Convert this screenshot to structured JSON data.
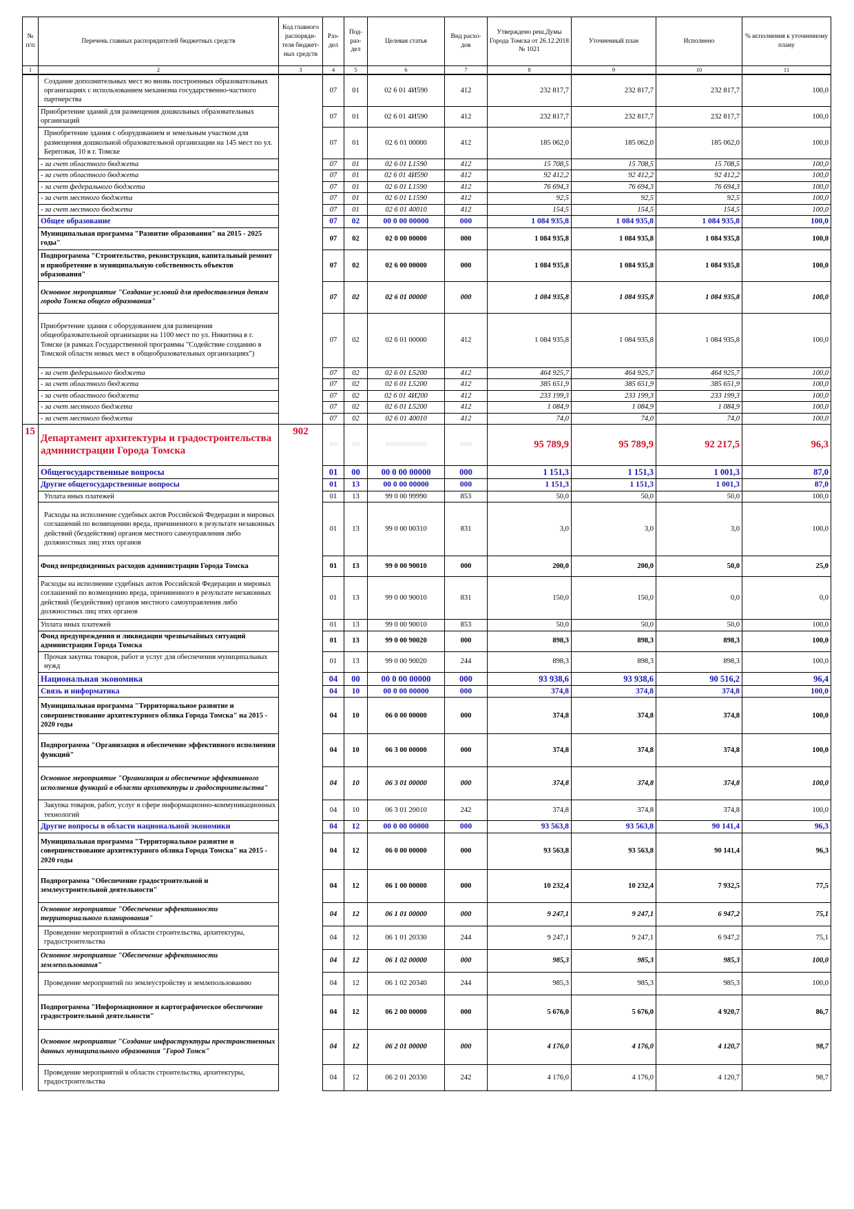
{
  "header": {
    "c1": "№ п/п",
    "c2": "Перечень главных распорядителей бюджетных средств",
    "c3": "Код главного распоряди-теля бюджет-ных средств",
    "c4": "Раз-дел",
    "c5": "Под-раз-дел",
    "c6": "Целевая статья",
    "c7": "Вид расхо-дов",
    "c8": "Утверждено реш.Думы Города Томска от 26.12.2018 № 1021",
    "c9": "Уточненный план",
    "c10": "Исполнено",
    "c11": "% исполнения к уточненному плану"
  },
  "col_numbers": [
    "1",
    "2",
    "3",
    "4",
    "5",
    "6",
    "7",
    "8",
    "9",
    "10",
    "11"
  ],
  "rows": [
    {
      "name": "Создание дополнительных мест во вновь построенных образовательных организациях с использованием механизма государственно-частного партнерства",
      "rz": "07",
      "pr": "01",
      "cs": "02 6 01 4И590",
      "vr": "412",
      "p1": "232 817,7",
      "p2": "232 817,7",
      "p3": "232 817,7",
      "pct": "100,0"
    },
    {
      "name": "Приобретение зданий для размещения дошкольных образовательных организаций",
      "rz": "07",
      "pr": "01",
      "cs": "02 6 01 4И590",
      "vr": "412",
      "p1": "232 817,7",
      "p2": "232 817,7",
      "p3": "232 817,7",
      "pct": "100,0"
    },
    {
      "name": "Приобретение здания с оборудованием и земельным участком для размещения дошкольной образовательной организации на 145 мест по ул. Береговая, 10 в г. Томске",
      "rz": "07",
      "pr": "01",
      "cs": "02 6 01 00000",
      "vr": "412",
      "p1": "185 062,0",
      "p2": "185 062,0",
      "p3": "185 062,0",
      "pct": "100,0"
    },
    {
      "name": "- за счет областного бюджета",
      "rz": "07",
      "pr": "01",
      "cs": "02 6 01 L1590",
      "vr": "412",
      "p1": "15 708,5",
      "p2": "15 708,5",
      "p3": "15 708,5",
      "pct": "100,0"
    },
    {
      "name": "- за счет областного бюджета",
      "rz": "07",
      "pr": "01",
      "cs": "02 6 01 4И590",
      "vr": "412",
      "p1": "92 412,2",
      "p2": "92 412,2",
      "p3": "92 412,2",
      "pct": "100,0"
    },
    {
      "name": "- за счет федерального бюджета",
      "rz": "07",
      "pr": "01",
      "cs": "02 6 01 L1590",
      "vr": "412",
      "p1": "76 694,3",
      "p2": "76 694,3",
      "p3": "76 694,3",
      "pct": "100,0"
    },
    {
      "name": "- за счет местного бюджета",
      "rz": "07",
      "pr": "01",
      "cs": "02 6 01 L1590",
      "vr": "412",
      "p1": "92,5",
      "p2": "92,5",
      "p3": "92,5",
      "pct": "100,0"
    },
    {
      "name": "- за счет местного бюджета",
      "rz": "07",
      "pr": "01",
      "cs": "02 6 01 40010",
      "vr": "412",
      "p1": "154,5",
      "p2": "154,5",
      "p3": "154,5",
      "pct": "100,0"
    },
    {
      "name": "Общее образование",
      "rz": "07",
      "pr": "02",
      "cs": "00 0 00 00000",
      "vr": "000",
      "p1": "1 084 935,8",
      "p2": "1 084 935,8",
      "p3": "1 084 935,8",
      "pct": "100,0"
    },
    {
      "name": "Муниципальная программа \"Развитие образования\" на 2015 - 2025 годы\"",
      "rz": "07",
      "pr": "02",
      "cs": "02 0 00 00000",
      "vr": "000",
      "p1": "1 084 935,8",
      "p2": "1 084 935,8",
      "p3": "1 084 935,8",
      "pct": "100,0"
    },
    {
      "name": "Подпрограмма \"Строительство, реконструкция, капитальный ремонт и приобретение в муниципальную собственность объектов образования\"",
      "rz": "07",
      "pr": "02",
      "cs": "02 6 00 00000",
      "vr": "000",
      "p1": "1 084 935,8",
      "p2": "1 084 935,8",
      "p3": "1 084 935,8",
      "pct": "100,0"
    },
    {
      "name": "Основное мероприятие \"Создание условий для предоставления детям города Томска общего образования\"",
      "rz": "07",
      "pr": "02",
      "cs": "02 6 01 00000",
      "vr": "000",
      "p1": "1 084 935,8",
      "p2": "1 084 935,8",
      "p3": "1 084 935,8",
      "pct": "100,0"
    },
    {
      "name": "Приобретение здания с оборудованием для размещения общеобразовательной организации на 1100 мест по ул. Никитина в г. Томске (в рамках Государственной программы \"Содействие созданию в Томской области новых мест в общеобразовательных организациях\")",
      "rz": "07",
      "pr": "02",
      "cs": "02 6 01 00000",
      "vr": "412",
      "p1": "1 084 935,8",
      "p2": "1 084 935,8",
      "p3": "1 084 935,8",
      "pct": "100,0"
    },
    {
      "name": "- за счет федерального бюджета",
      "rz": "07",
      "pr": "02",
      "cs": "02 6 01 L5200",
      "vr": "412",
      "p1": "464 925,7",
      "p2": "464 925,7",
      "p3": "464 925,7",
      "pct": "100,0"
    },
    {
      "name": "- за счет областного бюджета",
      "rz": "07",
      "pr": "02",
      "cs": "02 6 01 L5200",
      "vr": "412",
      "p1": "385 651,9",
      "p2": "385 651,9",
      "p3": "385 651,9",
      "pct": "100,0"
    },
    {
      "name": "- за счет областного бюджета",
      "rz": "07",
      "pr": "02",
      "cs": "02 6 01 4И200",
      "vr": "412",
      "p1": "233 199,3",
      "p2": "233 199,3",
      "p3": "233 199,3",
      "pct": "100,0"
    },
    {
      "name": "- за счет местного бюджета",
      "rz": "07",
      "pr": "02",
      "cs": "02 6 01 L5200",
      "vr": "412",
      "p1": "1 084,9",
      "p2": "1 084,9",
      "p3": "1 084,9",
      "pct": "100,0"
    },
    {
      "name": "- за счет местного бюджета",
      "rz": "07",
      "pr": "02",
      "cs": "02 6 01 40010",
      "vr": "412",
      "p1": "74,0",
      "p2": "74,0",
      "p3": "74,0",
      "pct": "100,0"
    }
  ],
  "dept": {
    "no": "15",
    "name": "Департамент архитектуры и градостроительства администрации Города Томска",
    "code": "902",
    "ph": "◌◌",
    "ph_cs": "◌◌◌◌◌◌◌◌◌◌",
    "ph_vr": "◌◌◌",
    "p1": "95 789,9",
    "p2": "95 789,9",
    "p3": "92 217,5",
    "pct": "96,3"
  },
  "rows2": [
    {
      "name": "Общегосударственные вопросы",
      "rz": "01",
      "pr": "00",
      "cs": "00 0 00 00000",
      "vr": "000",
      "p1": "1 151,3",
      "p2": "1 151,3",
      "p3": "1 001,3",
      "pct": "87,0"
    },
    {
      "name": "Другие общегосударственные вопросы",
      "rz": "01",
      "pr": "13",
      "cs": "00 0 00 00000",
      "vr": "000",
      "p1": "1 151,3",
      "p2": "1 151,3",
      "p3": "1 001,3",
      "pct": "87,0"
    },
    {
      "name": "Уплата иных платежей",
      "rz": "01",
      "pr": "13",
      "cs": "99 0 00 99990",
      "vr": "853",
      "p1": "50,0",
      "p2": "50,0",
      "p3": "50,0",
      "pct": "100,0"
    },
    {
      "name": "Расходы на исполнение судебных актов Российской Федерации и мировых соглашений по возмещению вреда, причиненного в результате незаконных действий (бездействия) органов местного самоуправления либо должностных лиц этих органов",
      "rz": "01",
      "pr": "13",
      "cs": "99 0 00 00310",
      "vr": "831",
      "p1": "3,0",
      "p2": "3,0",
      "p3": "3,0",
      "pct": "100,0"
    },
    {
      "name": "Фонд непредвиденных расходов администрации Города Томска",
      "rz": "01",
      "pr": "13",
      "cs": "99 0 00 90010",
      "vr": "000",
      "p1": "200,0",
      "p2": "200,0",
      "p3": "50,0",
      "pct": "25,0"
    },
    {
      "name": "Расходы на исполнение судебных актов Российской Федерации и мировых соглашений по возмещению вреда, причиненного в результате незаконных действий (бездействия) органов местного самоуправления либо должностных лиц этих органов",
      "rz": "01",
      "pr": "13",
      "cs": "99 0 00 90010",
      "vr": "831",
      "p1": "150,0",
      "p2": "150,0",
      "p3": "0,0",
      "pct": "0,0"
    },
    {
      "name": "Уплата иных платежей",
      "rz": "01",
      "pr": "13",
      "cs": "99 0 00 90010",
      "vr": "853",
      "p1": "50,0",
      "p2": "50,0",
      "p3": "50,0",
      "pct": "100,0"
    },
    {
      "name": "Фонд предупреждения и ликвидации чрезвычайных ситуаций администрации Города Томска",
      "rz": "01",
      "pr": "13",
      "cs": "99 0 00 90020",
      "vr": "000",
      "p1": "898,3",
      "p2": "898,3",
      "p3": "898,3",
      "pct": "100,0"
    },
    {
      "name": "Прочая закупка товаров, работ и услуг для обеспечения муниципальных нужд",
      "rz": "01",
      "pr": "13",
      "cs": "99 0 00 90020",
      "vr": "244",
      "p1": "898,3",
      "p2": "898,3",
      "p3": "898,3",
      "pct": "100,0"
    },
    {
      "name": "Национальная экономика",
      "rz": "04",
      "pr": "00",
      "cs": "00 0 00 00000",
      "vr": "000",
      "p1": "93 938,6",
      "p2": "93 938,6",
      "p3": "90 516,2",
      "pct": "96,4"
    },
    {
      "name": "Связь и информатика",
      "rz": "04",
      "pr": "10",
      "cs": "00 0 00 00000",
      "vr": "000",
      "p1": "374,8",
      "p2": "374,8",
      "p3": "374,8",
      "pct": "100,0"
    },
    {
      "name": "Муниципальная программа \"Территориальное развитие и совершенствование архитектурного облика Города Томска\" на 2015 - 2020 годы",
      "rz": "04",
      "pr": "10",
      "cs": "06 0 00 00000",
      "vr": "000",
      "p1": "374,8",
      "p2": "374,8",
      "p3": "374,8",
      "pct": "100,0"
    },
    {
      "name": "Подпрограмма \"Организация и обеспечение эффективного исполнения функций\"",
      "rz": "04",
      "pr": "10",
      "cs": "06 3 00 00000",
      "vr": "000",
      "p1": "374,8",
      "p2": "374,8",
      "p3": "374,8",
      "pct": "100,0"
    },
    {
      "name": "Основное мероприятие \"Организация и обеспечение эффективного исполнения функций в области архитектуры и градостроительства\"",
      "rz": "04",
      "pr": "10",
      "cs": "06 3 01 00000",
      "vr": "000",
      "p1": "374,8",
      "p2": "374,8",
      "p3": "374,8",
      "pct": "100,0"
    },
    {
      "name": "Закупка товаров, работ, услуг в сфере информационно-коммуникационных технологий",
      "rz": "04",
      "pr": "10",
      "cs": "06 3 01 20010",
      "vr": "242",
      "p1": "374,8",
      "p2": "374,8",
      "p3": "374,8",
      "pct": "100,0"
    },
    {
      "name": "Другие вопросы в области национальной экономики",
      "rz": "04",
      "pr": "12",
      "cs": "00 0 00 00000",
      "vr": "000",
      "p1": "93 563,8",
      "p2": "93 563,8",
      "p3": "90 141,4",
      "pct": "96,3"
    },
    {
      "name": "Муниципальная программа \"Территориальное развитие и совершенствование архитектурного облика Города Томска\" на 2015 - 2020 годы",
      "rz": "04",
      "pr": "12",
      "cs": "06 0 00 00000",
      "vr": "000",
      "p1": "93 563,8",
      "p2": "93 563,8",
      "p3": "90 141,4",
      "pct": "96,3"
    },
    {
      "name": "Подпрограмма \"Обеспечение градостроительной и землеустроительной деятельности\"",
      "rz": "04",
      "pr": "12",
      "cs": "06 1 00 00000",
      "vr": "000",
      "p1": "10 232,4",
      "p2": "10 232,4",
      "p3": "7 932,5",
      "pct": "77,5"
    },
    {
      "name": "Основное мероприятие \"Обеспечение эффективности территориального планирования\"",
      "rz": "04",
      "pr": "12",
      "cs": "06 1 01 00000",
      "vr": "000",
      "p1": "9 247,1",
      "p2": "9 247,1",
      "p3": "6 947,2",
      "pct": "75,1"
    },
    {
      "name": "Проведение мероприятий в области строительства, архитектуры, градостроительства",
      "rz": "04",
      "pr": "12",
      "cs": "06 1 01 20330",
      "vr": "244",
      "p1": "9 247,1",
      "p2": "9 247,1",
      "p3": "6 947,2",
      "pct": "75,1"
    },
    {
      "name": "Основное мероприятие \"Обеспечение эффективности землепользования\"",
      "rz": "04",
      "pr": "12",
      "cs": "06 1 02 00000",
      "vr": "000",
      "p1": "985,3",
      "p2": "985,3",
      "p3": "985,3",
      "pct": "100,0"
    },
    {
      "name": "Проведение мероприятий по землеустройству и землепользованию",
      "rz": "04",
      "pr": "12",
      "cs": "06 1 02 20340",
      "vr": "244",
      "p1": "985,3",
      "p2": "985,3",
      "p3": "985,3",
      "pct": "100,0"
    },
    {
      "name": "Подпрограмма \"Информационное и картографическое обеспечение градостроительной деятельности\"",
      "rz": "04",
      "pr": "12",
      "cs": "06 2 00 00000",
      "vr": "000",
      "p1": "5 676,0",
      "p2": "5 676,0",
      "p3": "4 920,7",
      "pct": "86,7"
    },
    {
      "name": "Основное мероприятие \"Создание инфраструктуры пространственных данных муниципального образования \"Город Томск\"",
      "rz": "04",
      "pr": "12",
      "cs": "06 2 01 00000",
      "vr": "000",
      "p1": "4 176,0",
      "p2": "4 176,0",
      "p3": "4 120,7",
      "pct": "98,7"
    },
    {
      "name": "Проведение мероприятий в области строительства, архитектуры, градостроительства",
      "rz": "04",
      "pr": "12",
      "cs": "06 2 01 20330",
      "vr": "242",
      "p1": "4 176,0",
      "p2": "4 176,0",
      "p3": "4 120,7",
      "pct": "98,7"
    }
  ]
}
